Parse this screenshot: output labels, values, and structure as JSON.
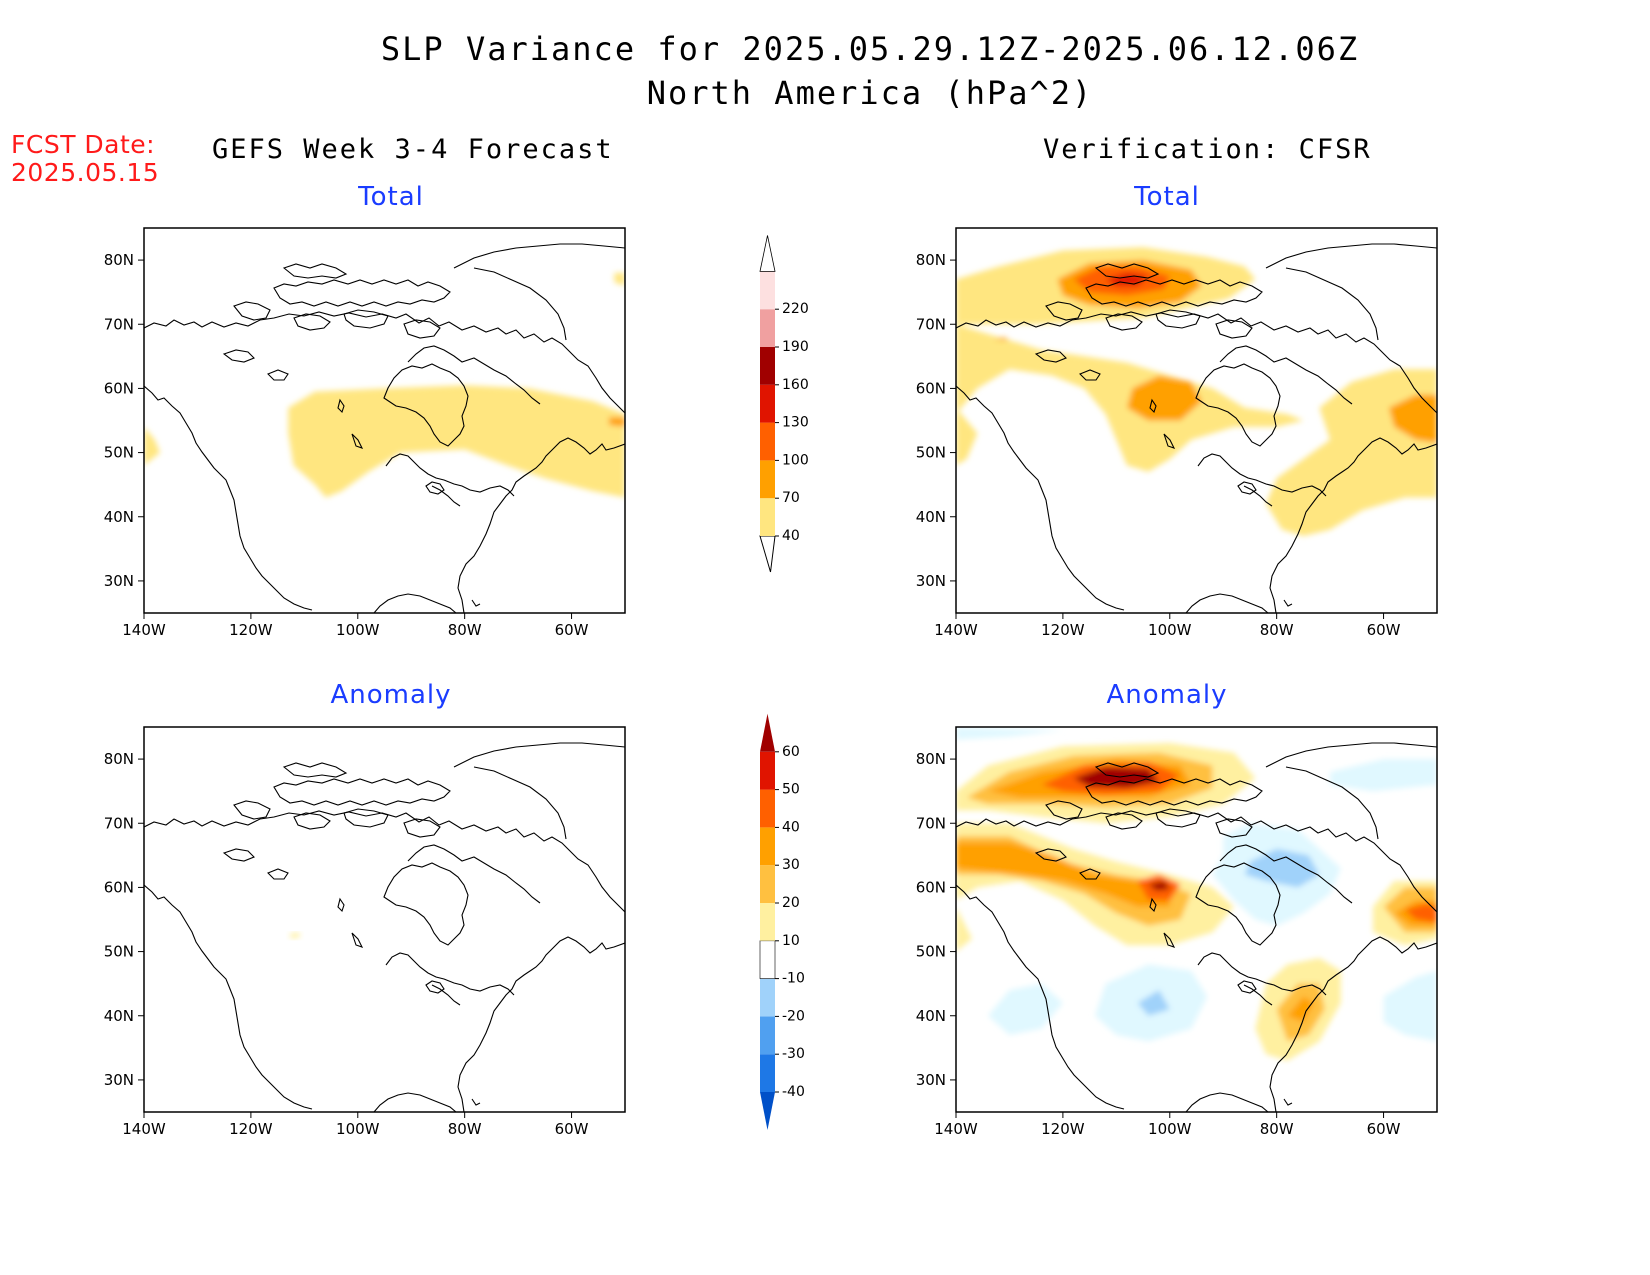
{
  "header": {
    "title": "SLP Variance for 2025.05.29.12Z-2025.06.12.06Z",
    "subtitle": "North America (hPa^2)",
    "fcst_label": "FCST Date:",
    "fcst_date": "2025.05.15"
  },
  "columns": {
    "left_title": "GEFS Week 3-4 Forecast",
    "right_title": "Verification: CFSR"
  },
  "panels": {
    "fc_total": "Total",
    "fc_anom": "Anomaly",
    "ver_total": "Total",
    "ver_anom": "Anomaly"
  },
  "axes": {
    "lon_labels": [
      "140W",
      "120W",
      "100W",
      "80W",
      "60W"
    ],
    "lon_values": [
      -140,
      -120,
      -100,
      -80,
      -60
    ],
    "lat_labels": [
      "30N",
      "40N",
      "50N",
      "60N",
      "70N",
      "80N"
    ],
    "lat_values": [
      30,
      40,
      50,
      60,
      70,
      80
    ],
    "lon_range": [
      -140,
      -50
    ],
    "lat_range": [
      25,
      85
    ]
  },
  "colorbars": {
    "total": {
      "labels": [
        "40",
        "70",
        "100",
        "130",
        "160",
        "190",
        "220"
      ],
      "colors": [
        "#ffe680",
        "#ffa000",
        "#ff6000",
        "#e01400",
        "#a00000",
        "#f0a0a0",
        "#fde0e0"
      ]
    },
    "anomaly": {
      "labels": [
        "-40",
        "-30",
        "-20",
        "-10",
        "10",
        "20",
        "30",
        "40",
        "50",
        "60"
      ],
      "colors": [
        "#0050c8",
        "#1e78e6",
        "#50a0f0",
        "#a0d2fa",
        "#e0f8ff",
        "#ffffff",
        "#fff0a0",
        "#ffc040",
        "#ffa000",
        "#ff6000",
        "#e01400",
        "#a00000"
      ]
    }
  },
  "chart_data": [
    {
      "type": "heatmap",
      "title": "Total",
      "panel": "GEFS Week 3-4 Forecast",
      "units": "hPa^2",
      "features": [
        {
          "name": "central Canada / Hudson Bay band",
          "level": "40-70",
          "lon": [
            -113,
            -50
          ],
          "lat": [
            43,
            60
          ]
        },
        {
          "name": "Gulf of Alaska edge",
          "level": "40-70",
          "lon": [
            -140,
            -138
          ],
          "lat": [
            48,
            54
          ]
        },
        {
          "name": "Newfoundland max",
          "level": "70-100",
          "lon": [
            -53,
            -50
          ],
          "lat": [
            54,
            56
          ]
        }
      ]
    },
    {
      "type": "heatmap",
      "title": "Anomaly",
      "panel": "GEFS Week 3-4 Forecast",
      "units": "hPa^2",
      "features": [
        {
          "name": "near-zero anomaly everywhere",
          "level": "-10-10"
        },
        {
          "name": "small spot central Canada",
          "level": "10-20",
          "lon": [
            -113,
            -111
          ],
          "lat": [
            52,
            53
          ]
        }
      ]
    },
    {
      "type": "heatmap",
      "title": "Total",
      "panel": "Verification: CFSR",
      "units": "hPa^2",
      "features": [
        {
          "name": "Arctic archipelago max",
          "level": "130-160",
          "lon": [
            -113,
            -105
          ],
          "lat": [
            75,
            79
          ]
        },
        {
          "name": "Arctic region",
          "level": "70-100",
          "lon": [
            -124,
            -96
          ],
          "lat": [
            72,
            81
          ]
        },
        {
          "name": "Western Canada max",
          "level": "70-100",
          "lon": [
            -107,
            -95
          ],
          "lat": [
            55,
            62
          ]
        },
        {
          "name": "Atlantic Canada max",
          "level": "70-100",
          "lon": [
            -59,
            -50
          ],
          "lat": [
            52,
            59
          ]
        },
        {
          "name": "Broad band",
          "level": "40-70",
          "lon": [
            -140,
            -50
          ],
          "lat": [
            38,
            82
          ]
        }
      ]
    },
    {
      "type": "heatmap",
      "title": "Anomaly",
      "panel": "Verification: CFSR",
      "units": "hPa^2",
      "features": [
        {
          "name": "Arctic archipelago max",
          "level": "50-60+",
          "lon": [
            -118,
            -100
          ],
          "lat": [
            74,
            79
          ]
        },
        {
          "name": "Western Canada max",
          "level": "50-60+",
          "lon": [
            -105,
            -100
          ],
          "lat": [
            59,
            61
          ]
        },
        {
          "name": "Alaska / NW Canada",
          "level": "30-40",
          "lon": [
            -140,
            -115
          ],
          "lat": [
            60,
            68
          ]
        },
        {
          "name": "Atlantic Canada",
          "level": "40-50",
          "lon": [
            -56,
            -50
          ],
          "lat": [
            54,
            57
          ]
        },
        {
          "name": "US Northeast",
          "level": "20-30",
          "lon": [
            -78,
            -72
          ],
          "lat": [
            36,
            44
          ]
        },
        {
          "name": "Hudson Bay negative",
          "level": "-20--30",
          "lon": [
            -85,
            -70
          ],
          "lat": [
            60,
            65
          ]
        },
        {
          "name": "US Plains negative",
          "level": "-10--20",
          "lon": [
            -110,
            -95
          ],
          "lat": [
            38,
            46
          ]
        },
        {
          "name": "Western Atlantic negative",
          "level": "-10--20",
          "lon": [
            -56,
            -50
          ],
          "lat": [
            38,
            44
          ]
        }
      ]
    }
  ]
}
